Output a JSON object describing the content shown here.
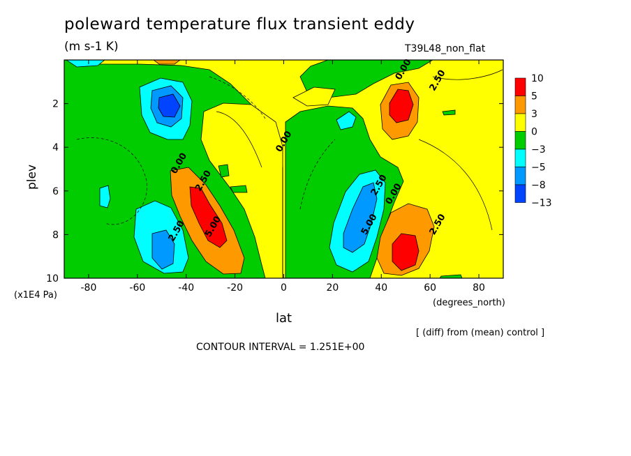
{
  "chart_data": {
    "type": "heatmap",
    "title": "poleward temperature flux transient eddy",
    "units": "(m s-1 K)",
    "experiment": "T39L48_non_flat",
    "xlabel": "lat",
    "xlabel_units": "(degrees_north)",
    "ylabel": "plev",
    "ylabel_units": "(x1E4 Pa)",
    "xlim": [
      -90,
      90
    ],
    "ylim": [
      10,
      0
    ],
    "xticks": [
      "-80",
      "-60",
      "-40",
      "-20",
      "0",
      "20",
      "40",
      "60",
      "80"
    ],
    "xtick_values": [
      -80,
      -60,
      -40,
      -20,
      0,
      20,
      40,
      60,
      80
    ],
    "yticks": [
      "2",
      "4",
      "6",
      "8",
      "10"
    ],
    "ytick_values": [
      2,
      4,
      6,
      8,
      10
    ],
    "contour_interval": "CONTOUR INTERVAL = 1.251E+00",
    "note": "[ (diff) from (mean) control ]",
    "colorbar": {
      "labels": [
        "10",
        "5",
        "3",
        "0",
        "−3",
        "−5",
        "−8",
        "−13"
      ],
      "colors": [
        "#ff0000",
        "#ff9900",
        "#ffff00",
        "#00cc00",
        "#00ffff",
        "#0099ff",
        "#0044ff"
      ]
    },
    "contour_labels": [
      {
        "text": "0.00",
        "lat": -42,
        "plev": 4.8
      },
      {
        "text": "2.50",
        "lat": -32,
        "plev": 5.6
      },
      {
        "text": "5.00",
        "lat": -28,
        "plev": 7.7
      },
      {
        "text": "2.50",
        "lat": -43,
        "plev": 7.9
      },
      {
        "text": "0.00",
        "lat": 1,
        "plev": 3.8
      },
      {
        "text": "0.00",
        "lat": 50,
        "plev": 0.5
      },
      {
        "text": "2.50",
        "lat": 64,
        "plev": 1.0
      },
      {
        "text": "2.50",
        "lat": 40,
        "plev": 5.8
      },
      {
        "text": "0.00",
        "lat": 46,
        "plev": 6.2
      },
      {
        "text": "5.00",
        "lat": 36,
        "plev": 7.6
      },
      {
        "text": "2.50",
        "lat": 64,
        "plev": 7.6
      }
    ],
    "features": [
      {
        "name": "southern-negative-upper",
        "category": "−8",
        "lat": -51,
        "plev": 2.1
      },
      {
        "name": "southern-positive-lower",
        "category": "10",
        "lat": -34,
        "plev": 7.0
      },
      {
        "name": "southern-negative-lower",
        "category": "−5",
        "lat": -51,
        "plev": 8.6
      },
      {
        "name": "northern-positive-upper",
        "category": "10",
        "lat": 44,
        "plev": 2.1
      },
      {
        "name": "northern-negative-lower",
        "category": "−5",
        "lat": 32,
        "plev": 7.3
      },
      {
        "name": "northern-positive-lower",
        "category": "10",
        "lat": 47,
        "plev": 8.7
      }
    ]
  }
}
